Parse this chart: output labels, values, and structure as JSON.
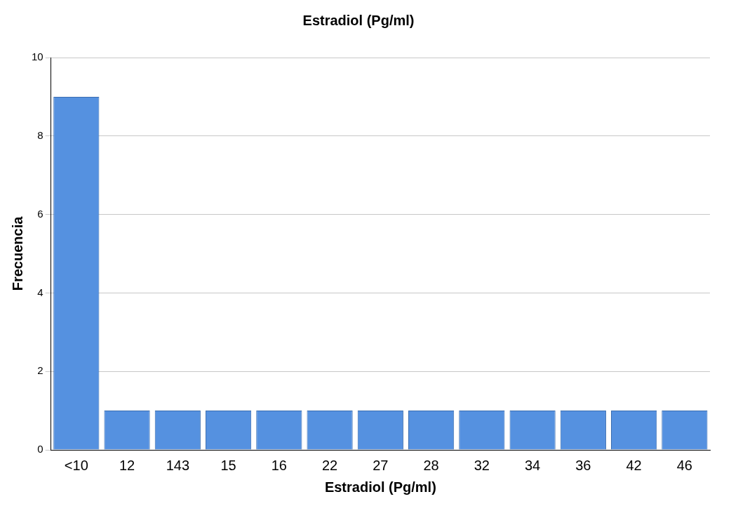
{
  "chart_data": {
    "type": "bar",
    "title": "Estradiol (Pg/ml)",
    "xlabel": "Estradiol (Pg/ml)",
    "ylabel": "Frecuencia",
    "categories": [
      "<10",
      "12",
      "143",
      "15",
      "16",
      "22",
      "27",
      "28",
      "32",
      "34",
      "36",
      "42",
      "46"
    ],
    "values": [
      9,
      1,
      1,
      1,
      1,
      1,
      1,
      1,
      1,
      1,
      1,
      1,
      1
    ],
    "color": "#5591e0",
    "ylim": [
      0,
      10
    ],
    "yticks": [
      0,
      2,
      4,
      6,
      8,
      10
    ],
    "grid": "y"
  }
}
